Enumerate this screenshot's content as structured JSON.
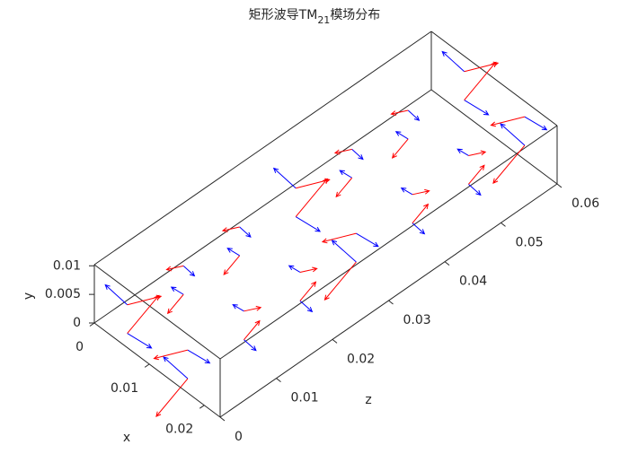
{
  "chart_data": {
    "type": "quiver3",
    "title": "矩形波导TM",
    "title_subscript": "21",
    "title_suffix": "模场分布",
    "xlabel": "x",
    "ylabel": "y",
    "zlabel": "z",
    "xlim": [
      0,
      0.0229
    ],
    "ylim": [
      0,
      0.0102
    ],
    "zlim": [
      0,
      0.06
    ],
    "xticks": [
      0,
      0.01,
      0.02
    ],
    "yticks": [
      0,
      0.005,
      0.01
    ],
    "zticks": [
      0,
      0.01,
      0.02,
      0.03,
      0.04,
      0.05,
      0.06
    ],
    "x": [
      0.006,
      0.006,
      0.017,
      0.017,
      0.006,
      0.006,
      0.017,
      0.017,
      0.006,
      0.006,
      0.017,
      0.017,
      0.006,
      0.006,
      0.017,
      0.017,
      0.006,
      0.006,
      0.017,
      0.017,
      0.006,
      0.006,
      0.017,
      0.017,
      0.006,
      0.006,
      0.017,
      0.017
    ],
    "y": [
      0.0025,
      0.0075,
      0.0025,
      0.0075,
      0.0025,
      0.0075,
      0.0025,
      0.0075,
      0.0025,
      0.0075,
      0.0025,
      0.0075,
      0.0025,
      0.0075,
      0.0025,
      0.0075,
      0.0025,
      0.0075,
      0.0025,
      0.0075,
      0.0025,
      0.0075,
      0.0025,
      0.0075,
      0.0025,
      0.0075,
      0.0025,
      0.0075
    ],
    "z": [
      0,
      0,
      0,
      0,
      0.01,
      0.01,
      0.01,
      0.01,
      0.02,
      0.02,
      0.02,
      0.02,
      0.03,
      0.03,
      0.03,
      0.03,
      0.04,
      0.04,
      0.04,
      0.04,
      0.05,
      0.05,
      0.05,
      0.05,
      0.06,
      0.06,
      0.06,
      0.06
    ],
    "series": [
      {
        "color": "#0000ff",
        "u": [
          0.0022,
          -0.002,
          -0.0022,
          0.002,
          -0.0011,
          0.001,
          0.0011,
          -0.001,
          -0.0011,
          0.001,
          0.0011,
          -0.001,
          0.0022,
          -0.002,
          -0.0022,
          0.002,
          -0.0011,
          0.001,
          0.0011,
          -0.001,
          -0.0011,
          0.001,
          0.0011,
          -0.001,
          0.0022,
          -0.002,
          -0.0022,
          0.002
        ],
        "v": [
          0.0003,
          0.0003,
          0.0003,
          0.0003,
          -0.00015,
          -0.00015,
          -0.00015,
          -0.00015,
          -0.00015,
          -0.00015,
          -0.00015,
          -0.00015,
          0.0003,
          0.0003,
          0.0003,
          0.0003,
          -0.00015,
          -0.00015,
          -0.00015,
          -0.00015,
          -0.00015,
          -0.00015,
          -0.00015,
          -0.00015,
          0.0003,
          0.0003,
          0.0003,
          0.0003
        ],
        "w": [
          0,
          0,
          0,
          0,
          0,
          0,
          0,
          0,
          0,
          0,
          0,
          0,
          0,
          0,
          0,
          0,
          0,
          0,
          0,
          0,
          0,
          0,
          0,
          0,
          0,
          0,
          0,
          0
        ]
      },
      {
        "color": "#ff0000",
        "u": [
          0,
          0,
          0,
          0,
          0,
          0,
          0,
          0,
          0,
          0,
          0,
          0,
          0,
          0,
          0,
          0,
          0,
          0,
          0,
          0,
          0,
          0,
          0,
          0,
          0,
          0,
          0,
          0
        ],
        "v": [
          0.0014,
          -0.0013,
          -0.0014,
          0.0013,
          -0.0007,
          0.0007,
          0.0007,
          -0.0007,
          -0.0007,
          0.0007,
          0.0007,
          -0.0007,
          0.0014,
          -0.0013,
          -0.0014,
          0.0013,
          -0.0007,
          0.0007,
          0.0007,
          -0.0007,
          -0.0007,
          0.0007,
          0.0007,
          -0.0007,
          0.0014,
          -0.0013,
          -0.0014,
          0.0013
        ],
        "w": [
          0.0028,
          0.003,
          -0.0028,
          -0.003,
          -0.0014,
          -0.0015,
          0.0014,
          0.0015,
          -0.0014,
          -0.0015,
          0.0014,
          0.0015,
          0.0028,
          0.003,
          -0.0028,
          -0.003,
          -0.0014,
          -0.0015,
          0.0014,
          0.0015,
          -0.0014,
          -0.0015,
          0.0014,
          0.0015,
          0.0028,
          0.003,
          -0.0028,
          -0.003
        ]
      }
    ]
  }
}
